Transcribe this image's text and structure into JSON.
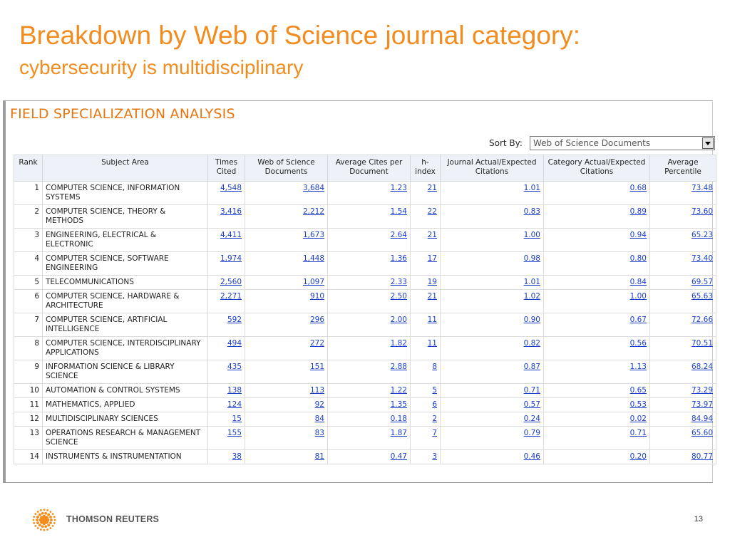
{
  "slide": {
    "title": "Breakdown by Web of Science journal category:",
    "subtitle": "cybersecurity is multidisciplinary",
    "page_number": "13"
  },
  "panel": {
    "heading": "FIELD SPECIALIZATION ANALYSIS",
    "sort_by_label": "Sort By:",
    "sort_by_value": "Web of Science Documents"
  },
  "table": {
    "headers": [
      "Rank",
      "Subject Area",
      "Times Cited",
      "Web of Science Documents",
      "Average Cites per Document",
      "h-index",
      "Journal Actual/Expected Citations",
      "Category Actual/Expected Citations",
      "Average Percentile"
    ],
    "rows": [
      {
        "rank": "1",
        "subject": "COMPUTER SCIENCE, INFORMATION SYSTEMS",
        "times_cited": "4,548",
        "documents": "3,684",
        "avg_cites": "1.23",
        "h_index": "21",
        "journal_ae": "1.01",
        "category_ae": "0.68",
        "percentile": "73.48"
      },
      {
        "rank": "2",
        "subject": "COMPUTER SCIENCE, THEORY & METHODS",
        "times_cited": "3,416",
        "documents": "2,212",
        "avg_cites": "1.54",
        "h_index": "22",
        "journal_ae": "0.83",
        "category_ae": "0.89",
        "percentile": "73.60"
      },
      {
        "rank": "3",
        "subject": "ENGINEERING, ELECTRICAL & ELECTRONIC",
        "times_cited": "4,411",
        "documents": "1,673",
        "avg_cites": "2.64",
        "h_index": "21",
        "journal_ae": "1.00",
        "category_ae": "0.94",
        "percentile": "65.23"
      },
      {
        "rank": "4",
        "subject": "COMPUTER SCIENCE, SOFTWARE ENGINEERING",
        "times_cited": "1,974",
        "documents": "1,448",
        "avg_cites": "1.36",
        "h_index": "17",
        "journal_ae": "0.98",
        "category_ae": "0.80",
        "percentile": "73.40"
      },
      {
        "rank": "5",
        "subject": "TELECOMMUNICATIONS",
        "times_cited": "2,560",
        "documents": "1,097",
        "avg_cites": "2.33",
        "h_index": "19",
        "journal_ae": "1.01",
        "category_ae": "0.84",
        "percentile": "69.57"
      },
      {
        "rank": "6",
        "subject": "COMPUTER SCIENCE, HARDWARE & ARCHITECTURE",
        "times_cited": "2,271",
        "documents": "910",
        "avg_cites": "2.50",
        "h_index": "21",
        "journal_ae": "1.02",
        "category_ae": "1.00",
        "percentile": "65.63"
      },
      {
        "rank": "7",
        "subject": "COMPUTER SCIENCE, ARTIFICIAL INTELLIGENCE",
        "times_cited": "592",
        "documents": "296",
        "avg_cites": "2.00",
        "h_index": "11",
        "journal_ae": "0.90",
        "category_ae": "0.67",
        "percentile": "72.66"
      },
      {
        "rank": "8",
        "subject": "COMPUTER SCIENCE, INTERDISCIPLINARY APPLICATIONS",
        "times_cited": "494",
        "documents": "272",
        "avg_cites": "1.82",
        "h_index": "11",
        "journal_ae": "0.82",
        "category_ae": "0.56",
        "percentile": "70.51"
      },
      {
        "rank": "9",
        "subject": "INFORMATION SCIENCE & LIBRARY SCIENCE",
        "times_cited": "435",
        "documents": "151",
        "avg_cites": "2.88",
        "h_index": "8",
        "journal_ae": "0.87",
        "category_ae": "1.13",
        "percentile": "68.24"
      },
      {
        "rank": "10",
        "subject": "AUTOMATION & CONTROL SYSTEMS",
        "times_cited": "138",
        "documents": "113",
        "avg_cites": "1.22",
        "h_index": "5",
        "journal_ae": "0.71",
        "category_ae": "0.65",
        "percentile": "73.29"
      },
      {
        "rank": "11",
        "subject": "MATHEMATICS, APPLIED",
        "times_cited": "124",
        "documents": "92",
        "avg_cites": "1.35",
        "h_index": "6",
        "journal_ae": "0.57",
        "category_ae": "0.53",
        "percentile": "73.97"
      },
      {
        "rank": "12",
        "subject": "MULTIDISCIPLINARY SCIENCES",
        "times_cited": "15",
        "documents": "84",
        "avg_cites": "0.18",
        "h_index": "2",
        "journal_ae": "0.24",
        "category_ae": "0.02",
        "percentile": "84.94"
      },
      {
        "rank": "13",
        "subject": "OPERATIONS RESEARCH & MANAGEMENT SCIENCE",
        "times_cited": "155",
        "documents": "83",
        "avg_cites": "1.87",
        "h_index": "7",
        "journal_ae": "0.79",
        "category_ae": "0.71",
        "percentile": "65.60"
      },
      {
        "rank": "14",
        "subject": "INSTRUMENTS & INSTRUMENTATION",
        "times_cited": "38",
        "documents": "81",
        "avg_cites": "0.47",
        "h_index": "3",
        "journal_ae": "0.46",
        "category_ae": "0.20",
        "percentile": "80.77"
      }
    ]
  },
  "footer": {
    "brand": "THOMSON REUTERS",
    "logo_icon": "thomson-reuters-dot-sphere-icon",
    "logo_color": "#F28C1E"
  },
  "colors": {
    "title": "#F28C1E",
    "heading": "#E8760E",
    "link": "#1a3ec9",
    "header_bg": "#eef2f8"
  }
}
